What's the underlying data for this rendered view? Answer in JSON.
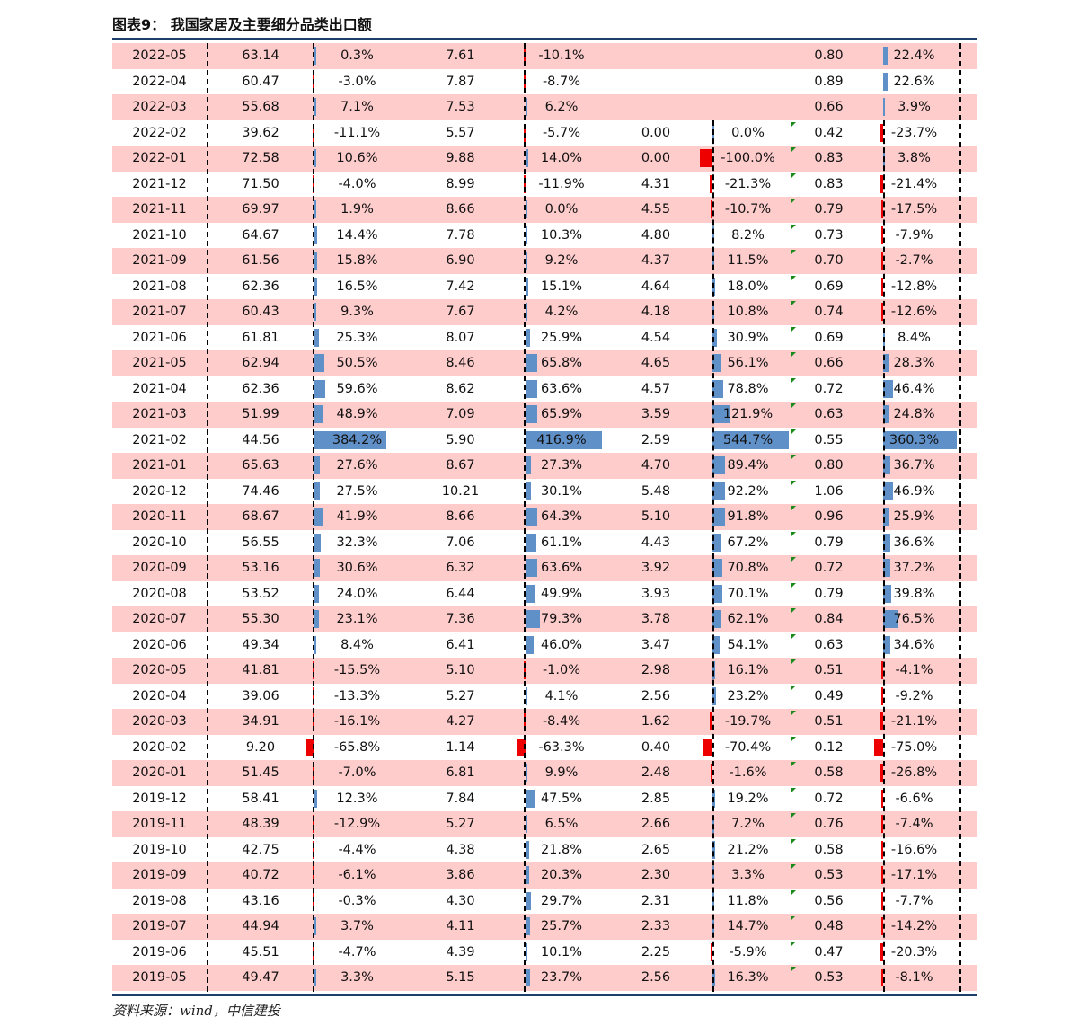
{
  "title": "图表9：   我国家居及主要细分品类出口额",
  "source": "资料来源：wind，中信建投",
  "colors": {
    "pink_row": "#ffcccc",
    "positive_bar": "#6090c8",
    "negative_bar": "#ee0000",
    "rule": "#1f3f6b"
  },
  "rows": [
    [
      "2022-05",
      "63.14",
      "0.3%",
      "7.61",
      "-10.1%",
      "",
      "",
      "0.80",
      "22.4%"
    ],
    [
      "2022-04",
      "60.47",
      "-3.0%",
      "7.87",
      "-8.7%",
      "",
      "",
      "0.89",
      "22.6%"
    ],
    [
      "2022-03",
      "55.68",
      "7.1%",
      "7.53",
      "6.2%",
      "",
      "",
      "0.66",
      "3.9%"
    ],
    [
      "2022-02",
      "39.62",
      "-11.1%",
      "5.57",
      "-5.7%",
      "0.00",
      "0.0%",
      "0.42",
      "-23.7%"
    ],
    [
      "2022-01",
      "72.58",
      "10.6%",
      "9.88",
      "14.0%",
      "0.00",
      "-100.0%",
      "0.83",
      "3.8%"
    ],
    [
      "2021-12",
      "71.50",
      "-4.0%",
      "8.99",
      "-11.9%",
      "4.31",
      "-21.3%",
      "0.83",
      "-21.4%"
    ],
    [
      "2021-11",
      "69.97",
      "1.9%",
      "8.66",
      "0.0%",
      "4.55",
      "-10.7%",
      "0.79",
      "-17.5%"
    ],
    [
      "2021-10",
      "64.67",
      "14.4%",
      "7.78",
      "10.3%",
      "4.80",
      "8.2%",
      "0.73",
      "-7.9%"
    ],
    [
      "2021-09",
      "61.56",
      "15.8%",
      "6.90",
      "9.2%",
      "4.37",
      "11.5%",
      "0.70",
      "-2.7%"
    ],
    [
      "2021-08",
      "62.36",
      "16.5%",
      "7.42",
      "15.1%",
      "4.64",
      "18.0%",
      "0.69",
      "-12.8%"
    ],
    [
      "2021-07",
      "60.43",
      "9.3%",
      "7.67",
      "4.2%",
      "4.18",
      "10.8%",
      "0.74",
      "-12.6%"
    ],
    [
      "2021-06",
      "61.81",
      "25.3%",
      "8.07",
      "25.9%",
      "4.54",
      "30.9%",
      "0.69",
      "8.4%"
    ],
    [
      "2021-05",
      "62.94",
      "50.5%",
      "8.46",
      "65.8%",
      "4.65",
      "56.1%",
      "0.66",
      "28.3%"
    ],
    [
      "2021-04",
      "62.36",
      "59.6%",
      "8.62",
      "63.6%",
      "4.57",
      "78.8%",
      "0.72",
      "46.4%"
    ],
    [
      "2021-03",
      "51.99",
      "48.9%",
      "7.09",
      "65.9%",
      "3.59",
      "121.9%",
      "0.63",
      "24.8%"
    ],
    [
      "2021-02",
      "44.56",
      "384.2%",
      "5.90",
      "416.9%",
      "2.59",
      "544.7%",
      "0.55",
      "360.3%"
    ],
    [
      "2021-01",
      "65.63",
      "27.6%",
      "8.67",
      "27.3%",
      "4.70",
      "89.4%",
      "0.80",
      "36.7%"
    ],
    [
      "2020-12",
      "74.46",
      "27.5%",
      "10.21",
      "30.1%",
      "5.48",
      "92.2%",
      "1.06",
      "46.9%"
    ],
    [
      "2020-11",
      "68.67",
      "41.9%",
      "8.66",
      "64.3%",
      "5.10",
      "91.8%",
      "0.96",
      "25.9%"
    ],
    [
      "2020-10",
      "56.55",
      "32.3%",
      "7.06",
      "61.1%",
      "4.43",
      "67.2%",
      "0.79",
      "36.6%"
    ],
    [
      "2020-09",
      "53.16",
      "30.6%",
      "6.32",
      "63.6%",
      "3.92",
      "70.8%",
      "0.72",
      "37.2%"
    ],
    [
      "2020-08",
      "53.52",
      "24.0%",
      "6.44",
      "49.9%",
      "3.93",
      "70.1%",
      "0.79",
      "39.8%"
    ],
    [
      "2020-07",
      "55.30",
      "23.1%",
      "7.36",
      "79.3%",
      "3.78",
      "62.1%",
      "0.84",
      "76.5%"
    ],
    [
      "2020-06",
      "49.34",
      "8.4%",
      "6.41",
      "46.0%",
      "3.47",
      "54.1%",
      "0.63",
      "34.6%"
    ],
    [
      "2020-05",
      "41.81",
      "-15.5%",
      "5.10",
      "-1.0%",
      "2.98",
      "16.1%",
      "0.51",
      "-4.1%"
    ],
    [
      "2020-04",
      "39.06",
      "-13.3%",
      "5.27",
      "4.1%",
      "2.56",
      "23.2%",
      "0.49",
      "-9.2%"
    ],
    [
      "2020-03",
      "34.91",
      "-16.1%",
      "4.27",
      "-8.4%",
      "1.62",
      "-19.7%",
      "0.51",
      "-21.1%"
    ],
    [
      "2020-02",
      "9.20",
      "-65.8%",
      "1.14",
      "-63.3%",
      "0.40",
      "-70.4%",
      "0.12",
      "-75.0%"
    ],
    [
      "2020-01",
      "51.45",
      "-7.0%",
      "6.81",
      "9.9%",
      "2.48",
      "-1.6%",
      "0.58",
      "-26.8%"
    ],
    [
      "2019-12",
      "58.41",
      "12.3%",
      "7.84",
      "47.5%",
      "2.85",
      "19.2%",
      "0.72",
      "-6.6%"
    ],
    [
      "2019-11",
      "48.39",
      "-12.9%",
      "5.27",
      "6.5%",
      "2.66",
      "7.2%",
      "0.76",
      "-7.4%"
    ],
    [
      "2019-10",
      "42.75",
      "-4.4%",
      "4.38",
      "21.8%",
      "2.65",
      "21.2%",
      "0.58",
      "-16.6%"
    ],
    [
      "2019-09",
      "40.72",
      "-6.1%",
      "3.86",
      "20.3%",
      "2.30",
      "3.3%",
      "0.53",
      "-17.1%"
    ],
    [
      "2019-08",
      "43.16",
      "-0.3%",
      "4.30",
      "29.7%",
      "2.31",
      "11.8%",
      "0.56",
      "-7.7%"
    ],
    [
      "2019-07",
      "44.94",
      "3.7%",
      "4.11",
      "25.7%",
      "2.33",
      "14.7%",
      "0.48",
      "-14.2%"
    ],
    [
      "2019-06",
      "45.51",
      "-4.7%",
      "4.39",
      "10.1%",
      "2.25",
      "-5.9%",
      "0.47",
      "-20.3%"
    ],
    [
      "2019-05",
      "49.47",
      "3.3%",
      "5.15",
      "23.7%",
      "2.56",
      "16.3%",
      "0.53",
      "-8.1%"
    ]
  ]
}
